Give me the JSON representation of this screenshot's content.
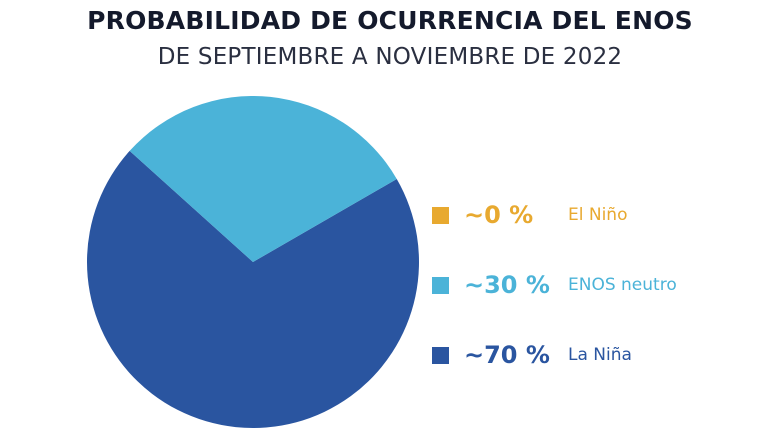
{
  "chart_data": {
    "type": "pie",
    "title": "PROBABILIDAD DE OCURRENCIA DEL ENOS",
    "subtitle": "DE SEPTIEMBRE A NOVIEMBRE DE 2022",
    "legend_position": "right",
    "series": [
      {
        "name": "El Niño",
        "label": "~0 %",
        "value": 0,
        "color": "#e8a92f"
      },
      {
        "name": "ENOS neutro",
        "label": "~30 %",
        "value": 30,
        "color": "#4bb3d8"
      },
      {
        "name": "La Niña",
        "label": "~70 %",
        "value": 70,
        "color": "#2a55a0"
      }
    ]
  }
}
